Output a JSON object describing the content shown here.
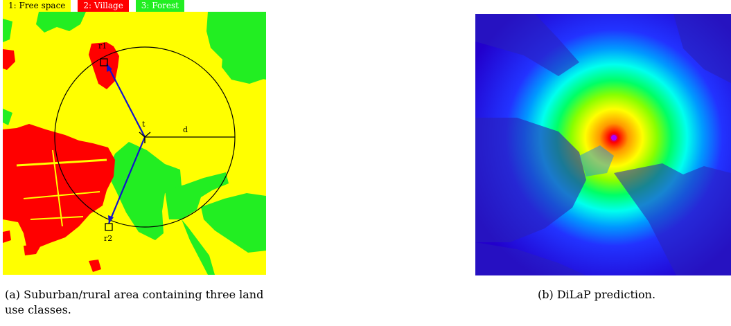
{
  "legend": [
    {
      "label": "1: Free space",
      "color": "#ffff00"
    },
    {
      "label": "2: Village",
      "color": "#ff0000"
    },
    {
      "label": "3: Forest",
      "color": "#22ee22"
    }
  ],
  "map_labels": {
    "r1": "r1",
    "r2": "r2",
    "t": "t",
    "d": "d"
  },
  "captions": {
    "a": "(a) Suburban/rural area containing three land use classes.",
    "b": "(b) DiLaP prediction."
  }
}
